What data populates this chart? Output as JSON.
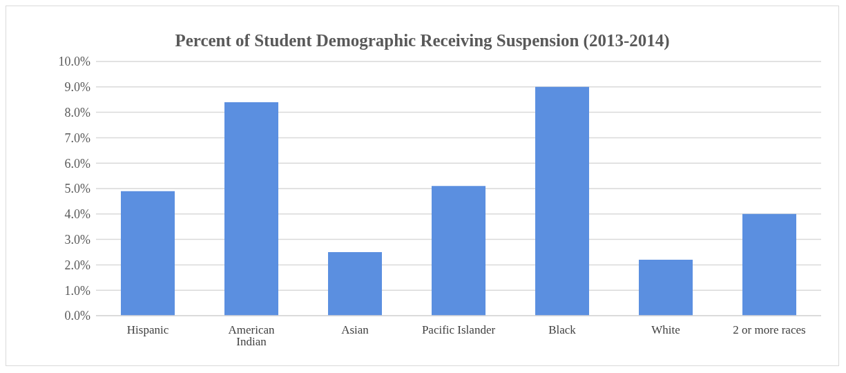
{
  "chart_data": {
    "type": "bar",
    "title": "Percent of Student Demographic Receiving Suspension (2013-2014)",
    "categories": [
      "Hispanic",
      "American Indian",
      "Asian",
      "Pacific Islander",
      "Black",
      "White",
      "2 or more races"
    ],
    "values": [
      4.9,
      8.4,
      2.5,
      5.1,
      9.0,
      2.2,
      4.0
    ],
    "color": "#5b8fe0",
    "ylim": [
      0,
      10
    ],
    "yticks": [
      {
        "value": 0,
        "label": "0.0%"
      },
      {
        "value": 1,
        "label": "1.0%"
      },
      {
        "value": 2,
        "label": "2.0%"
      },
      {
        "value": 3,
        "label": "3.0%"
      },
      {
        "value": 4,
        "label": "4.0%"
      },
      {
        "value": 5,
        "label": "5.0%"
      },
      {
        "value": 6,
        "label": "6.0%"
      },
      {
        "value": 7,
        "label": "7.0%"
      },
      {
        "value": 8,
        "label": "8.0%"
      },
      {
        "value": 9,
        "label": "9.0%"
      },
      {
        "value": 10,
        "label": "10.0%"
      }
    ],
    "grid": "y"
  }
}
